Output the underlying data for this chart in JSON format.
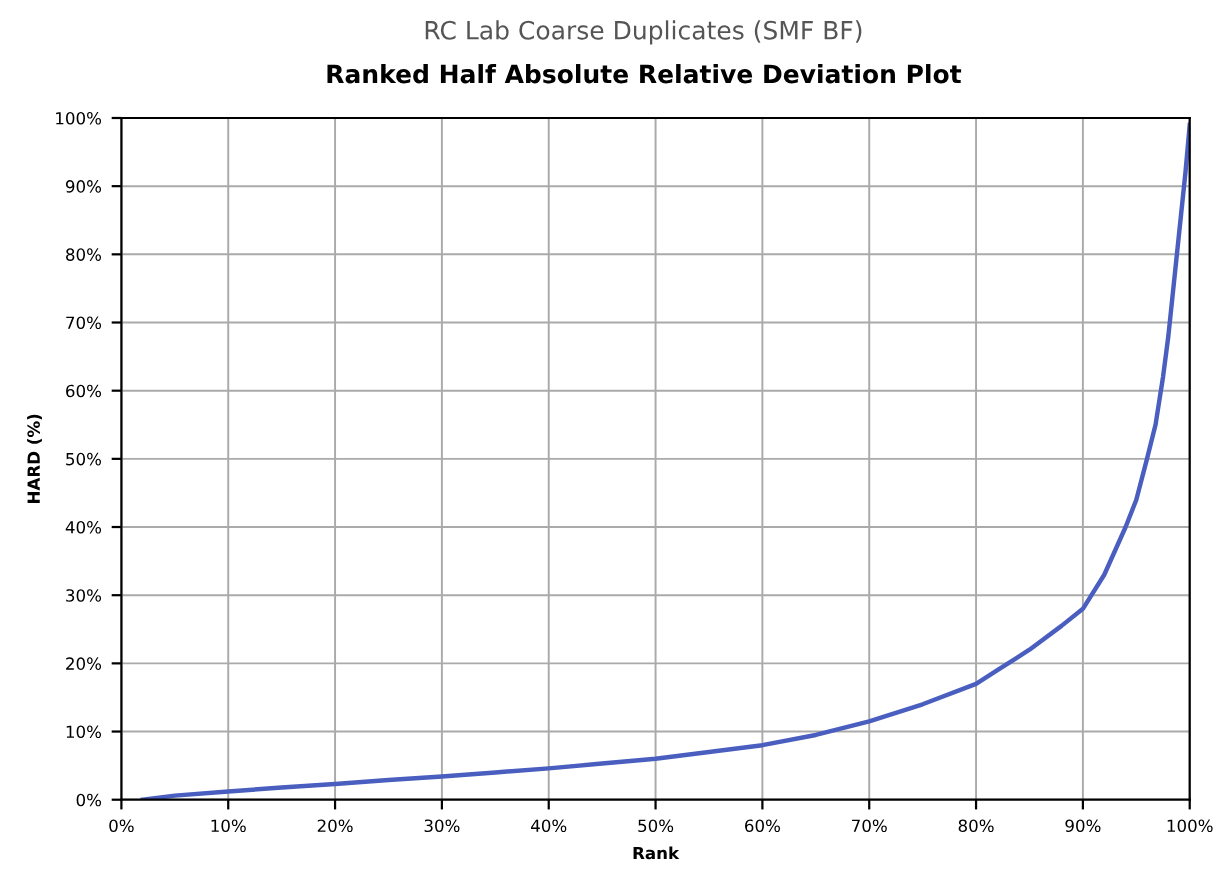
{
  "chart_data": {
    "type": "line",
    "title": "RC Lab Coarse Duplicates (SMF BF)",
    "subtitle": "Ranked Half Absolute Relative Deviation Plot",
    "xlabel": "Rank",
    "ylabel": "HARD (%)",
    "series": [
      {
        "color": "#4a5ec0",
        "x": [
          2,
          5,
          10,
          15,
          20,
          25,
          30,
          35,
          40,
          45,
          50,
          55,
          60,
          65,
          70,
          75,
          80,
          82,
          85,
          88,
          90,
          92,
          94,
          95,
          96,
          96.8,
          97.5,
          98,
          98.6,
          99.2,
          99.6,
          100
        ],
        "values": [
          0,
          0.6,
          1.2,
          1.8,
          2.3,
          2.9,
          3.4,
          4,
          4.6,
          5.3,
          6,
          7,
          8,
          9.5,
          11.5,
          14,
          17,
          19,
          22,
          25.5,
          28,
          33,
          40,
          44,
          50,
          55,
          62,
          68,
          77,
          86,
          92,
          99
        ]
      }
    ],
    "xlim": [
      0,
      100
    ],
    "ylim": [
      0,
      100
    ],
    "xticks": [
      {
        "value": 0,
        "label": "0%"
      },
      {
        "value": 10,
        "label": "10%"
      },
      {
        "value": 20,
        "label": "20%"
      },
      {
        "value": 30,
        "label": "30%"
      },
      {
        "value": 40,
        "label": "40%"
      },
      {
        "value": 50,
        "label": "50%"
      },
      {
        "value": 60,
        "label": "60%"
      },
      {
        "value": 70,
        "label": "70%"
      },
      {
        "value": 80,
        "label": "80%"
      },
      {
        "value": 90,
        "label": "90%"
      },
      {
        "value": 100,
        "label": "100%"
      }
    ],
    "yticks": [
      {
        "value": 0,
        "label": "0%"
      },
      {
        "value": 10,
        "label": "10%"
      },
      {
        "value": 20,
        "label": "20%"
      },
      {
        "value": 30,
        "label": "30%"
      },
      {
        "value": 40,
        "label": "40%"
      },
      {
        "value": 50,
        "label": "50%"
      },
      {
        "value": 60,
        "label": "60%"
      },
      {
        "value": 70,
        "label": "70%"
      },
      {
        "value": 80,
        "label": "80%"
      },
      {
        "value": 90,
        "label": "90%"
      },
      {
        "value": 100,
        "label": "100%"
      }
    ],
    "grid": true,
    "line_style": "solid"
  }
}
